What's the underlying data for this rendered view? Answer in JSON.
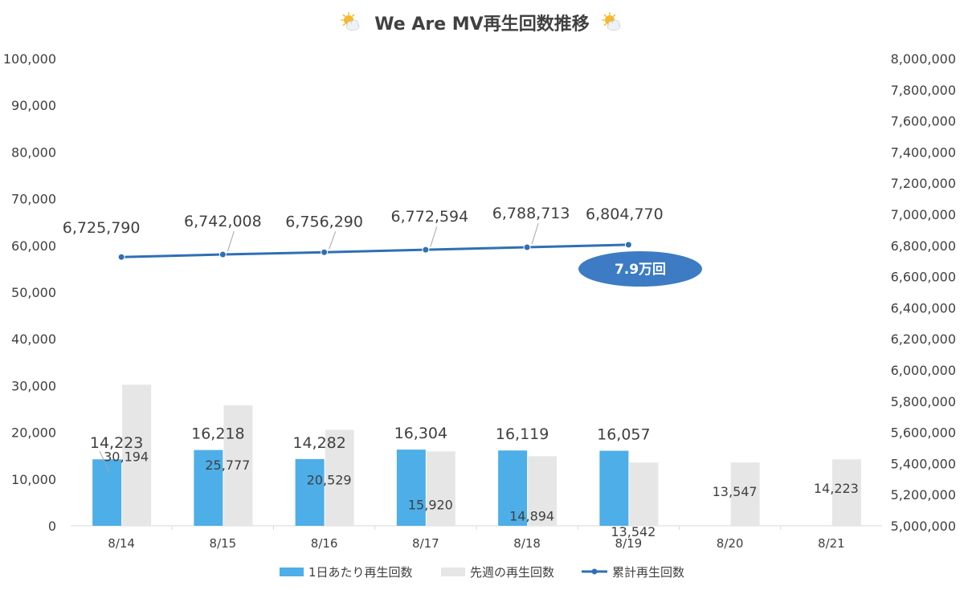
{
  "chart_data": {
    "type": "bar",
    "title": "We Are MV再生回数推移",
    "title_icon": "sun-behind-cloud-icon",
    "categories": [
      "8/14",
      "8/15",
      "8/16",
      "8/17",
      "8/18",
      "8/19",
      "8/20",
      "8/21"
    ],
    "series": [
      {
        "name": "1日あたり再生回数",
        "type": "bar",
        "axis": "left",
        "color": "#4daee8",
        "values": [
          14223,
          16218,
          14282,
          16304,
          16119,
          16057,
          null,
          null
        ],
        "labels": [
          "14,223",
          "16,218",
          "14,282",
          "16,304",
          "16,119",
          "16,057",
          "",
          ""
        ]
      },
      {
        "name": "先週の再生回数",
        "type": "bar",
        "axis": "left",
        "color": "#e6e6e6",
        "values": [
          30194,
          25777,
          20529,
          15920,
          14894,
          13542,
          13547,
          14223
        ],
        "labels": [
          "30,194",
          "25,777",
          "20,529",
          "15,920",
          "14,894",
          "13,542",
          "13,547",
          "14,223"
        ]
      },
      {
        "name": "累計再生回数",
        "type": "line",
        "axis": "right",
        "color": "#2f6fb5",
        "values": [
          6725790,
          6742008,
          6756290,
          6772594,
          6788713,
          6804770,
          null,
          null
        ],
        "labels": [
          "6,725,790",
          "6,742,008",
          "6,756,290",
          "6,772,594",
          "6,788,713",
          "6,804,770",
          "",
          ""
        ]
      }
    ],
    "y_left": {
      "min": 0,
      "max": 100000,
      "step": 10000,
      "ticks": [
        "0",
        "10,000",
        "20,000",
        "30,000",
        "40,000",
        "50,000",
        "60,000",
        "70,000",
        "80,000",
        "90,000",
        "100,000"
      ]
    },
    "y_right": {
      "min": 5000000,
      "max": 8000000,
      "step": 200000,
      "ticks": [
        "5,000,000",
        "5,200,000",
        "5,400,000",
        "5,600,000",
        "5,800,000",
        "6,000,000",
        "6,200,000",
        "6,400,000",
        "6,600,000",
        "6,800,000",
        "7,000,000",
        "7,200,000",
        "7,400,000",
        "7,600,000",
        "7,800,000",
        "8,000,000"
      ]
    },
    "annotation": {
      "text": "7.9万回",
      "color": "#3d7cc4"
    },
    "grid": false,
    "legend_position": "bottom"
  }
}
